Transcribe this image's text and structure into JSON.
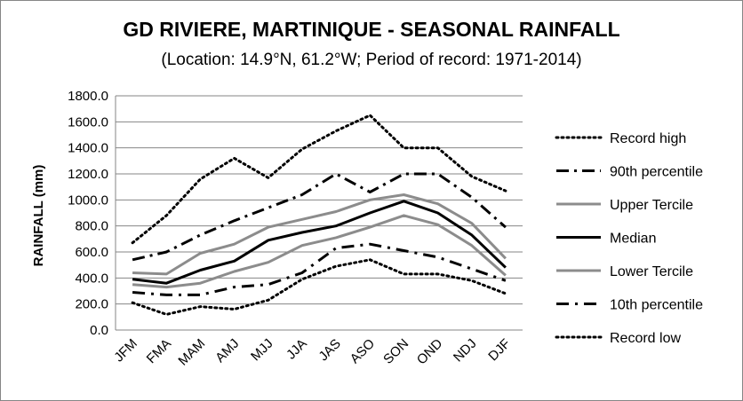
{
  "chart_data": {
    "type": "line",
    "title": "GD RIVIERE, MARTINIQUE - SEASONAL RAINFALL",
    "subtitle": "(Location: 14.9°N, 61.2°W; Period of record: 1971-2014)",
    "ylabel": "RAINFALL (mm)",
    "xlabel": "",
    "ylim": [
      0,
      1800
    ],
    "yticks": [
      "0.0",
      "200.0",
      "400.0",
      "600.0",
      "800.0",
      "1000.0",
      "1200.0",
      "1400.0",
      "1600.0",
      "1800.0"
    ],
    "categories": [
      "JFM",
      "FMA",
      "MAM",
      "AMJ",
      "MJJ",
      "JJA",
      "JAS",
      "ASO",
      "SON",
      "OND",
      "NDJ",
      "DJF"
    ],
    "grid": true,
    "legend_position": "right",
    "series": [
      {
        "name": "Record high",
        "color": "#000000",
        "style": "dotted",
        "values": [
          670,
          880,
          1160,
          1320,
          1170,
          1390,
          1530,
          1650,
          1400,
          1400,
          1180,
          1070
        ]
      },
      {
        "name": "90th percentile",
        "color": "#000000",
        "style": "dashdot",
        "values": [
          540,
          600,
          730,
          840,
          940,
          1040,
          1200,
          1060,
          1200,
          1200,
          1020,
          790
        ]
      },
      {
        "name": "Upper Tercile",
        "color": "#8c8c8c",
        "style": "solid",
        "values": [
          440,
          430,
          590,
          660,
          790,
          850,
          910,
          1000,
          1040,
          970,
          820,
          550
        ]
      },
      {
        "name": "Median",
        "color": "#000000",
        "style": "solid",
        "values": [
          390,
          360,
          460,
          530,
          690,
          750,
          800,
          900,
          990,
          900,
          730,
          480
        ]
      },
      {
        "name": "Lower Tercile",
        "color": "#8c8c8c",
        "style": "solid",
        "values": [
          350,
          330,
          360,
          450,
          520,
          650,
          710,
          790,
          880,
          810,
          650,
          420
        ]
      },
      {
        "name": "10th percentile",
        "color": "#000000",
        "style": "dashdash",
        "values": [
          290,
          270,
          270,
          330,
          350,
          440,
          630,
          660,
          610,
          560,
          470,
          380
        ]
      },
      {
        "name": "Record low",
        "color": "#000000",
        "style": "dotted",
        "values": [
          210,
          120,
          180,
          160,
          230,
          390,
          490,
          540,
          430,
          430,
          380,
          280
        ]
      }
    ]
  }
}
